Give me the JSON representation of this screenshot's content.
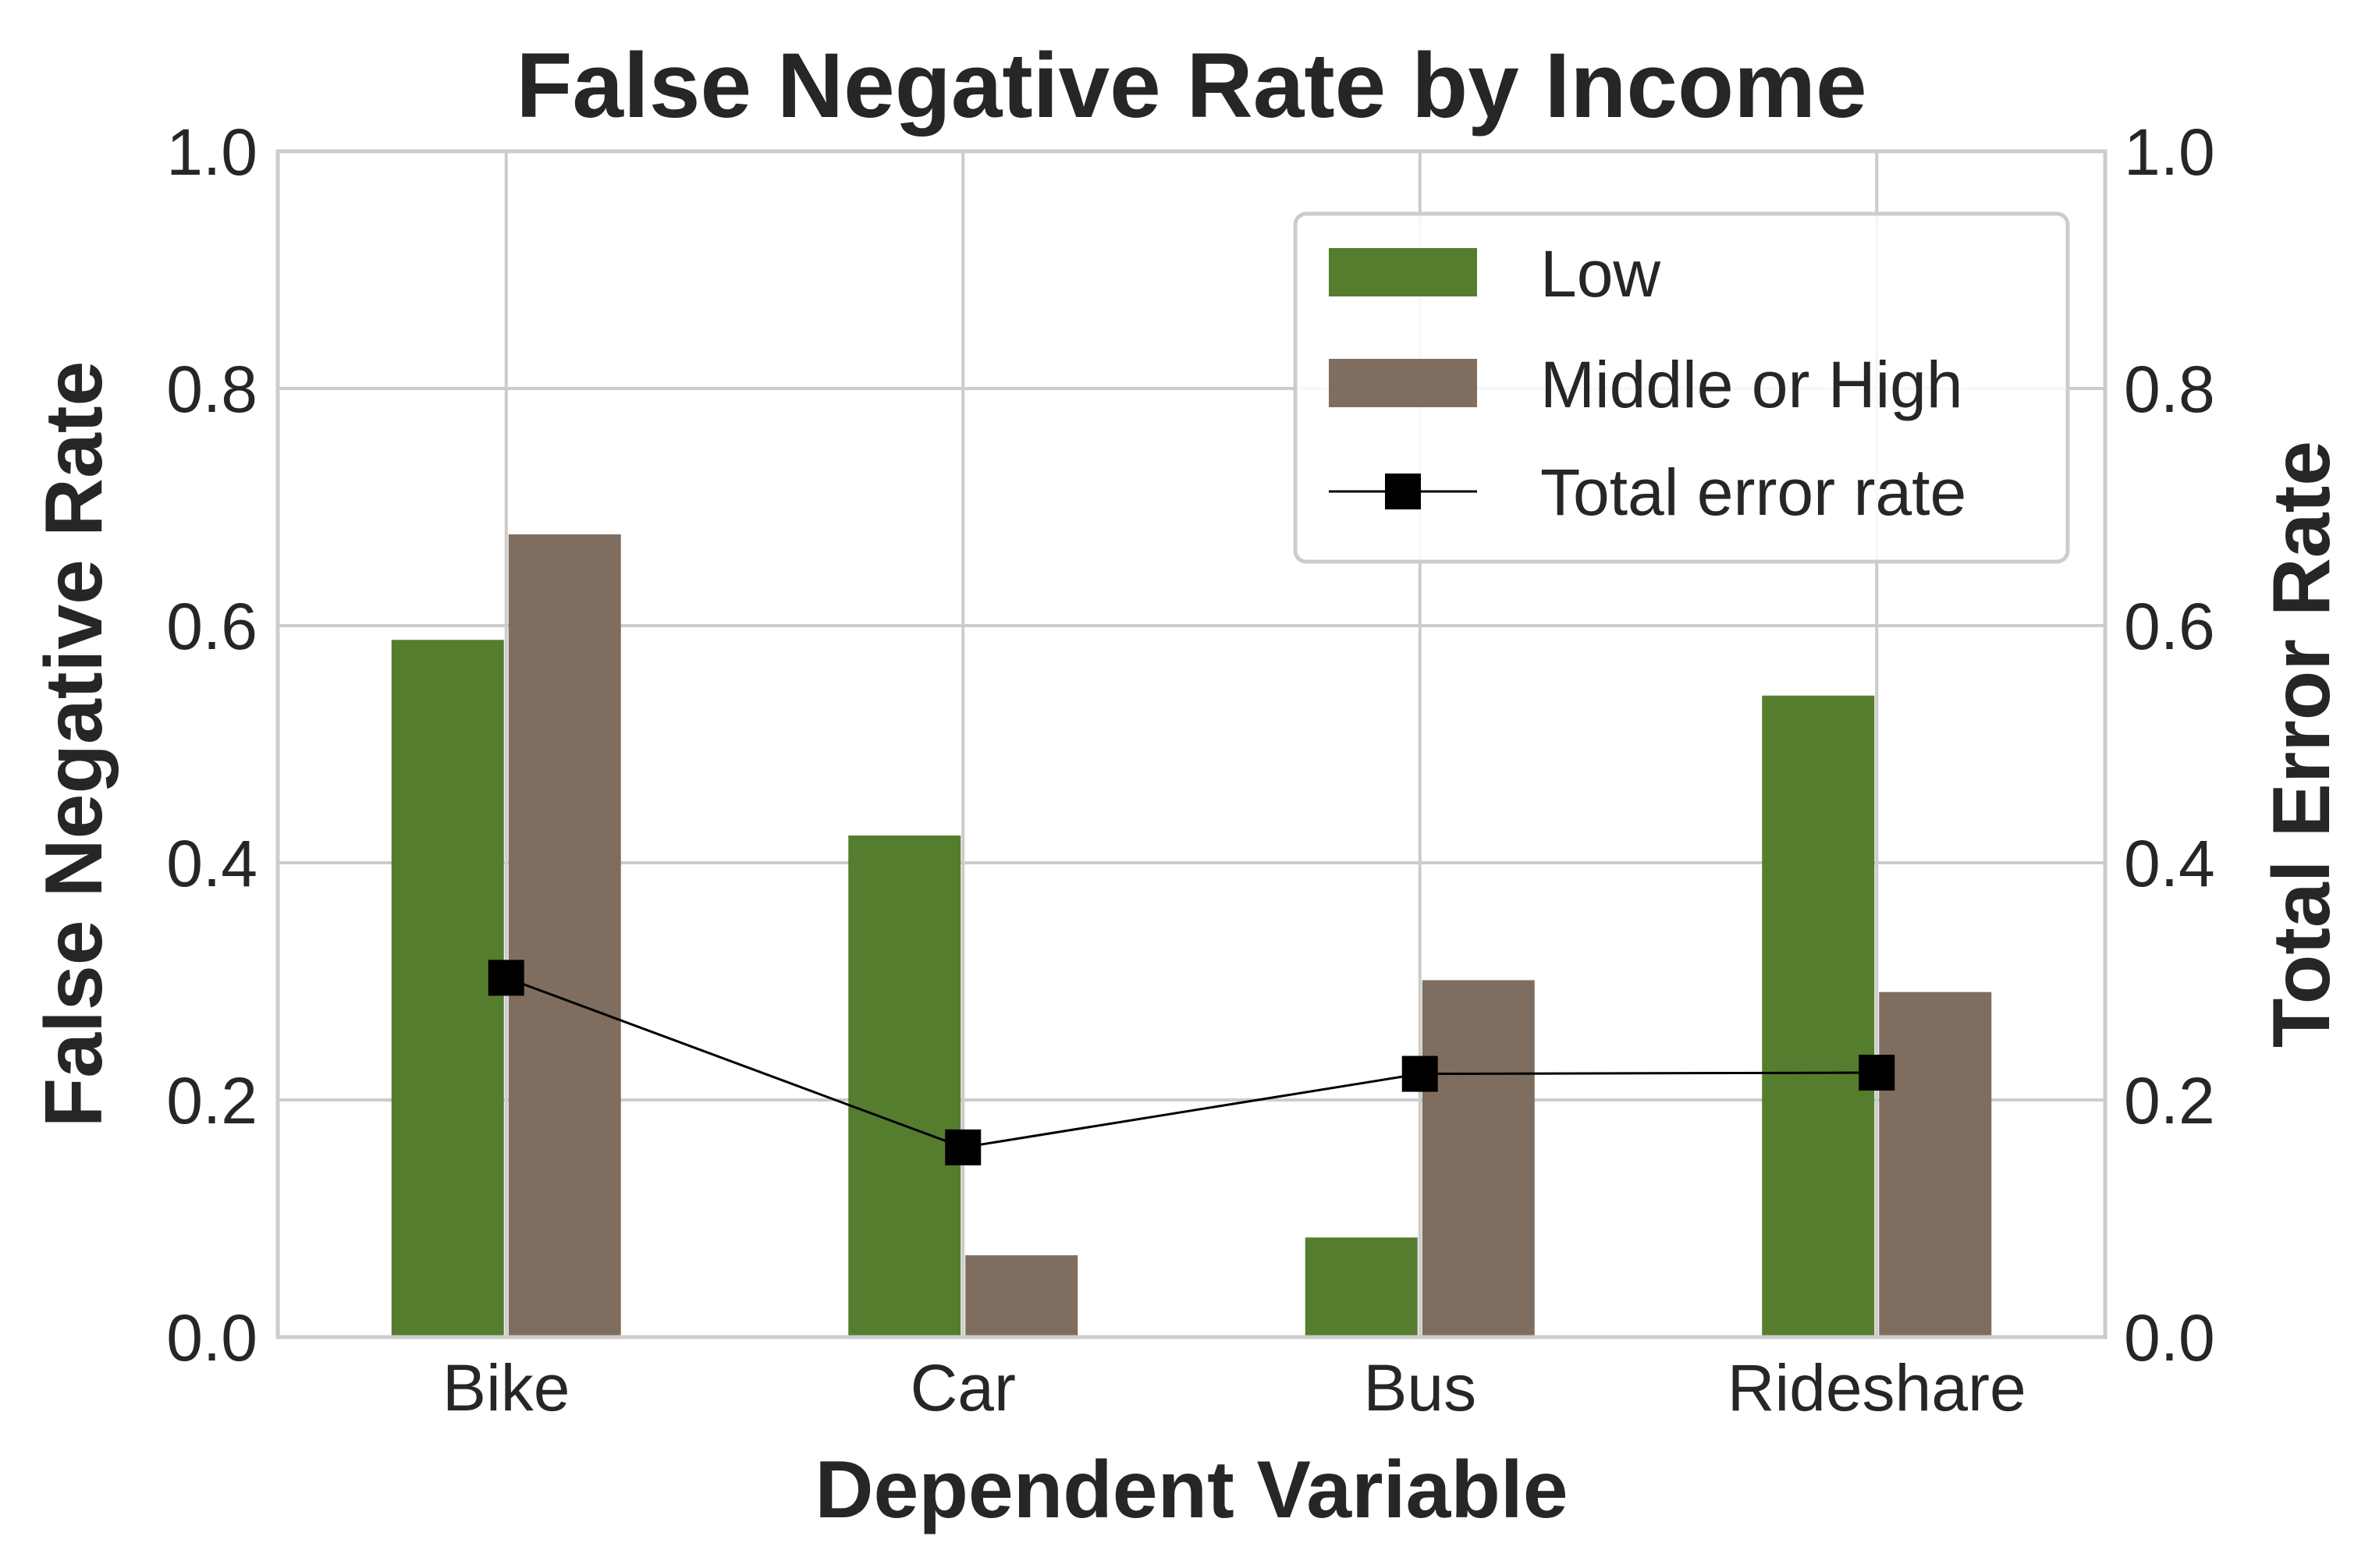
{
  "chart_data": {
    "type": "bar",
    "title": "False Negative Rate by Income",
    "xlabel": "Dependent Variable",
    "ylabel": "False Negative Rate",
    "ylabel_right": "Total Error Rate",
    "categories": [
      "Bike",
      "Car",
      "Bus",
      "Rideshare"
    ],
    "ylim": [
      0,
      1
    ],
    "ylim_right": [
      0,
      1
    ],
    "yticks": [
      0.0,
      0.2,
      0.4,
      0.6,
      0.8,
      1.0
    ],
    "ytick_labels": [
      "0.0",
      "0.2",
      "0.4",
      "0.6",
      "0.8",
      "1.0"
    ],
    "grid": true,
    "legend_position": "top-right",
    "series": [
      {
        "name": "Low",
        "kind": "bar",
        "color": "#557d2e",
        "values": [
          0.588,
          0.423,
          0.084,
          0.541
        ]
      },
      {
        "name": "Middle or High",
        "kind": "bar",
        "color": "#7f6e5f",
        "values": [
          0.677,
          0.069,
          0.301,
          0.291
        ]
      },
      {
        "name": "Total error rate",
        "kind": "line",
        "marker": "square",
        "color": "#000000",
        "axis": "right",
        "values": [
          0.303,
          0.16,
          0.222,
          0.223
        ]
      }
    ]
  }
}
